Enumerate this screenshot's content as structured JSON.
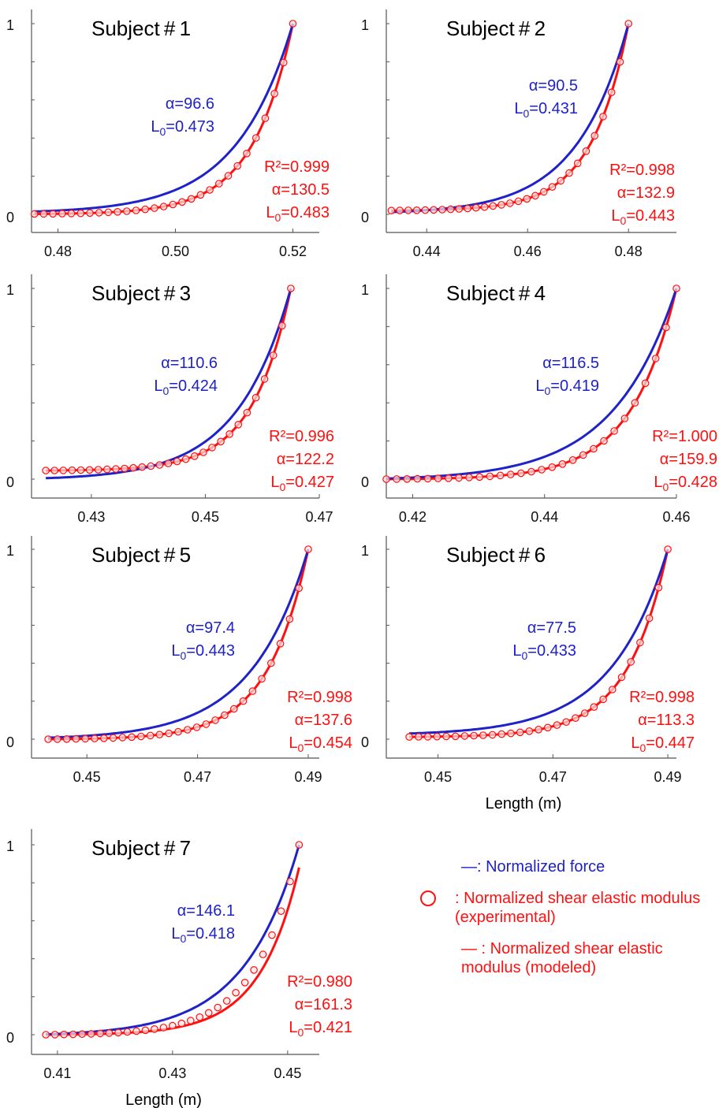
{
  "chart_data": [
    {
      "type": "line",
      "title": "Subject # 1",
      "xlim": [
        0.4755,
        0.5245
      ],
      "ylim": [
        0,
        1
      ],
      "xticks": [
        "0.48",
        "0.50",
        "0.52"
      ],
      "xtick_values": [
        0.48,
        0.5,
        0.52
      ],
      "yticks": [
        "0",
        "1"
      ],
      "force_fit": {
        "alpha": "96.6",
        "L0": "0.473"
      },
      "modulus_fit": {
        "R2": "0.999",
        "alpha": "130.5",
        "L0": "0.483"
      },
      "x_range": [
        0.476,
        0.52
      ],
      "y_start_force": 0.015,
      "y_start_modulus": 0.002,
      "xlabel": ""
    },
    {
      "type": "line",
      "title": "Subject # 2",
      "xlim": [
        0.432,
        0.4895
      ],
      "ylim": [
        0,
        1
      ],
      "xticks": [
        "0.44",
        "0.46",
        "0.48"
      ],
      "xtick_values": [
        0.44,
        0.46,
        0.48
      ],
      "yticks": [
        "0",
        "1"
      ],
      "force_fit": {
        "alpha": "90.5",
        "L0": "0.431"
      },
      "modulus_fit": {
        "R2": "0.998",
        "alpha": "132.9",
        "L0": "0.443"
      },
      "x_range": [
        0.433,
        0.48
      ],
      "y_start_force": 0.012,
      "y_start_modulus": 0.02,
      "xlabel": ""
    },
    {
      "type": "line",
      "title": "Subject # 3",
      "xlim": [
        0.4195,
        0.47
      ],
      "ylim": [
        0,
        1
      ],
      "xticks": [
        "0.43",
        "0.45",
        "0.47"
      ],
      "xtick_values": [
        0.43,
        0.45,
        0.47
      ],
      "yticks": [
        "0",
        "1"
      ],
      "force_fit": {
        "alpha": "110.6",
        "L0": "0.424"
      },
      "modulus_fit": {
        "R2": "0.996",
        "alpha": "122.2",
        "L0": "0.427"
      },
      "x_range": [
        0.422,
        0.465
      ],
      "y_start_force": 0.005,
      "y_start_modulus": 0.045,
      "xlabel": ""
    },
    {
      "type": "line",
      "title": "Subject # 4",
      "xlim": [
        0.416,
        0.46
      ],
      "ylim": [
        0,
        1
      ],
      "xticks": [
        "0.42",
        "0.44",
        "0.46"
      ],
      "xtick_values": [
        0.42,
        0.44,
        0.46
      ],
      "yticks": [
        "0",
        "1"
      ],
      "force_fit": {
        "alpha": "116.5",
        "L0": "0.419"
      },
      "modulus_fit": {
        "R2": "1.000",
        "alpha": "159.9",
        "L0": "0.428"
      },
      "x_range": [
        0.416,
        0.46
      ],
      "y_start_force": 0.003,
      "y_start_modulus": 0.0,
      "xlabel": ""
    },
    {
      "type": "line",
      "title": "Subject # 5",
      "xlim": [
        0.44,
        0.492
      ],
      "ylim": [
        0,
        1
      ],
      "xticks": [
        "0.45",
        "0.47",
        "0.49"
      ],
      "xtick_values": [
        0.45,
        0.47,
        0.49
      ],
      "yticks": [
        "0",
        "1"
      ],
      "force_fit": {
        "alpha": "97.4",
        "L0": "0.443"
      },
      "modulus_fit": {
        "R2": "0.998",
        "alpha": "137.6",
        "L0": "0.454"
      },
      "x_range": [
        0.443,
        0.49
      ],
      "y_start_force": 0.008,
      "y_start_modulus": 0.0,
      "xlabel": ""
    },
    {
      "type": "line",
      "title": "Subject # 6",
      "xlim": [
        0.441,
        0.4915
      ],
      "ylim": [
        0,
        1
      ],
      "xticks": [
        "0.45",
        "0.47",
        "0.49"
      ],
      "xtick_values": [
        0.45,
        0.47,
        0.49
      ],
      "yticks": [
        "0",
        "1"
      ],
      "force_fit": {
        "alpha": "77.5",
        "L0": "0.433"
      },
      "modulus_fit": {
        "R2": "0.998",
        "alpha": "113.3",
        "L0": "0.447"
      },
      "x_range": [
        0.445,
        0.49
      ],
      "y_start_force": 0.03,
      "y_start_modulus": 0.012,
      "xlabel": "Length (m)"
    },
    {
      "type": "line",
      "title": "Subject # 7",
      "xlim": [
        0.4055,
        0.4555
      ],
      "ylim": [
        0,
        1
      ],
      "xticks": [
        "0.41",
        "0.43",
        "0.45"
      ],
      "xtick_values": [
        0.41,
        0.43,
        0.45
      ],
      "yticks": [
        "0",
        "1"
      ],
      "force_fit": {
        "alpha": "146.1",
        "L0": "0.418"
      },
      "modulus_fit": {
        "R2": "0.980",
        "alpha": "161.3",
        "L0": "0.421"
      },
      "x_range": [
        0.408,
        0.452
      ],
      "y_start_force": 0.002,
      "y_start_modulus": 0.0,
      "y_end_force": 1.0,
      "y_end_modulus": 0.88,
      "xlabel": "Length (m)"
    }
  ],
  "legend": {
    "force": "—: Normalized force",
    "experimental": ": Normalized shear elastic modulus (experimental)",
    "modeled": "— : Normalized shear elastic modulus (modeled)"
  },
  "colors": {
    "force": "#1e22c8",
    "modulus": "#ff1010",
    "circle_fill": "#fde2e2",
    "axis": "#555555"
  }
}
